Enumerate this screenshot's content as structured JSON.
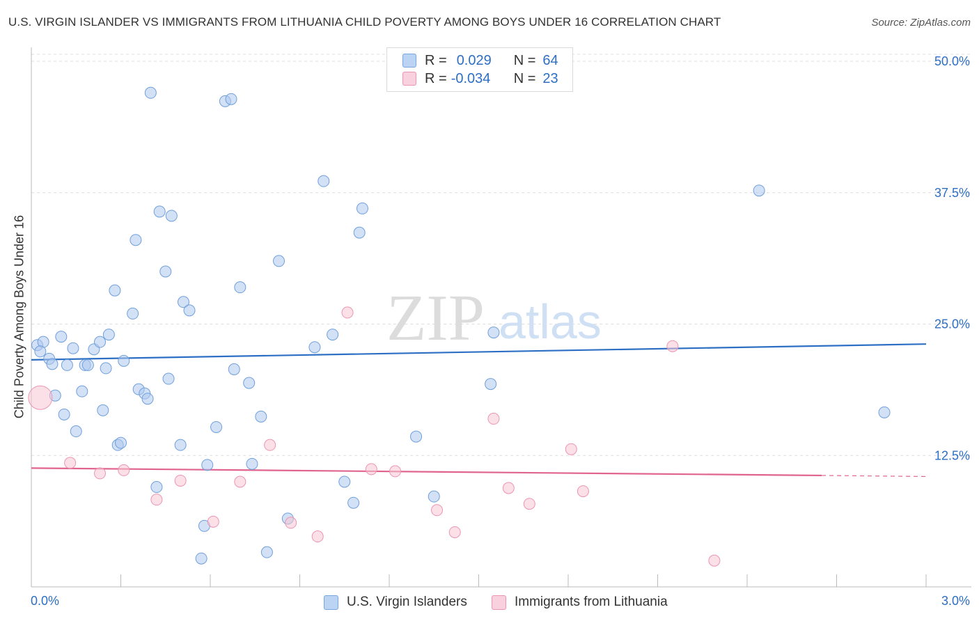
{
  "header": {
    "title": "U.S. VIRGIN ISLANDER VS IMMIGRANTS FROM LITHUANIA CHILD POVERTY AMONG BOYS UNDER 16 CORRELATION CHART",
    "source": "Source: ZipAtlas.com"
  },
  "watermark": {
    "zip": "ZIP",
    "atlas": "atlas"
  },
  "legend": {
    "series": [
      {
        "r_label": "R =",
        "r_value": "0.029",
        "n_label": "N =",
        "n_value": "64",
        "color": "#aec9ef",
        "border": "#7aa6e0"
      },
      {
        "r_label": "R =",
        "r_value": "-0.034",
        "n_label": "N =",
        "n_value": "23",
        "color": "#f7c6d6",
        "border": "#ec94b2"
      }
    ]
  },
  "bottom_legend": {
    "items": [
      {
        "label": "U.S. Virgin Islanders",
        "color": "#bcd4f3",
        "border": "#7aa6e0"
      },
      {
        "label": "Immigrants from Lithuania",
        "color": "#f9d1de",
        "border": "#ec94b2"
      }
    ]
  },
  "chart_data": {
    "type": "scatter",
    "title": "U.S. VIRGIN ISLANDER VS IMMIGRANTS FROM LITHUANIA CHILD POVERTY AMONG BOYS UNDER 16 CORRELATION CHART",
    "xlabel": "",
    "ylabel": "Child Poverty Among Boys Under 16",
    "xlim": [
      0,
      3.0
    ],
    "ylim": [
      0,
      50
    ],
    "x_tick_labels": [
      "0.0%",
      "3.0%"
    ],
    "y_ticks": [
      {
        "value": 12.5,
        "label": "12.5%"
      },
      {
        "value": 25.0,
        "label": "25.0%"
      },
      {
        "value": 37.5,
        "label": "37.5%"
      },
      {
        "value": 50.0,
        "label": "50.0%"
      }
    ],
    "grid": "horizontal-dashed",
    "series": [
      {
        "name": "U.S. Virgin Islanders",
        "color": "#aec9ef",
        "stroke": "#6f9fdc",
        "trend": {
          "x1": 0.0,
          "y1": 21.6,
          "x2": 3.0,
          "y2": 23.1,
          "color": "#2d6fc4"
        },
        "points": [
          [
            0.02,
            23.0
          ],
          [
            0.04,
            23.3
          ],
          [
            0.06,
            21.7
          ],
          [
            0.07,
            21.2
          ],
          [
            0.08,
            18.2
          ],
          [
            0.1,
            23.8
          ],
          [
            0.11,
            16.4
          ],
          [
            0.12,
            21.1
          ],
          [
            0.14,
            22.7
          ],
          [
            0.15,
            14.8
          ],
          [
            0.17,
            18.6
          ],
          [
            0.18,
            21.1
          ],
          [
            0.19,
            21.1
          ],
          [
            0.21,
            22.6
          ],
          [
            0.23,
            23.3
          ],
          [
            0.24,
            16.8
          ],
          [
            0.25,
            20.8
          ],
          [
            0.26,
            24.0
          ],
          [
            0.28,
            28.2
          ],
          [
            0.29,
            13.5
          ],
          [
            0.3,
            13.7
          ],
          [
            0.31,
            21.5
          ],
          [
            0.34,
            26.0
          ],
          [
            0.35,
            33.0
          ],
          [
            0.36,
            18.8
          ],
          [
            0.38,
            18.4
          ],
          [
            0.39,
            17.9
          ],
          [
            0.4,
            47.0
          ],
          [
            0.42,
            9.5
          ],
          [
            0.43,
            35.7
          ],
          [
            0.45,
            30.0
          ],
          [
            0.46,
            19.8
          ],
          [
            0.47,
            35.3
          ],
          [
            0.5,
            13.5
          ],
          [
            0.51,
            27.1
          ],
          [
            0.53,
            26.3
          ],
          [
            0.57,
            2.7
          ],
          [
            0.58,
            5.8
          ],
          [
            0.59,
            11.6
          ],
          [
            0.62,
            15.2
          ],
          [
            0.65,
            46.2
          ],
          [
            0.67,
            46.4
          ],
          [
            0.68,
            20.7
          ],
          [
            0.7,
            28.5
          ],
          [
            0.73,
            19.4
          ],
          [
            0.74,
            11.7
          ],
          [
            0.77,
            16.2
          ],
          [
            0.79,
            3.3
          ],
          [
            0.83,
            31.0
          ],
          [
            0.86,
            6.5
          ],
          [
            0.95,
            22.8
          ],
          [
            0.98,
            38.6
          ],
          [
            1.01,
            24.0
          ],
          [
            1.05,
            10.0
          ],
          [
            1.08,
            8.0
          ],
          [
            1.1,
            33.7
          ],
          [
            1.11,
            36.0
          ],
          [
            1.29,
            14.3
          ],
          [
            1.35,
            8.6
          ],
          [
            1.54,
            19.3
          ],
          [
            1.55,
            24.2
          ],
          [
            2.44,
            37.7
          ],
          [
            2.86,
            16.6
          ],
          [
            0.03,
            22.4
          ]
        ]
      },
      {
        "name": "Immigrants from Lithuania",
        "color": "#f7c6d6",
        "stroke": "#ec94b2",
        "trend": {
          "x1": 0.0,
          "y1": 11.3,
          "x2": 2.65,
          "y2": 10.6,
          "x3": 3.0,
          "y3": 10.5,
          "color": "#e0648f"
        },
        "points": [
          [
            0.03,
            18.0
          ],
          [
            0.13,
            11.8
          ],
          [
            0.23,
            10.8
          ],
          [
            0.31,
            11.1
          ],
          [
            0.42,
            8.3
          ],
          [
            0.5,
            10.1
          ],
          [
            0.61,
            6.2
          ],
          [
            0.7,
            10.0
          ],
          [
            0.8,
            13.5
          ],
          [
            0.87,
            6.1
          ],
          [
            0.96,
            4.8
          ],
          [
            1.06,
            26.1
          ],
          [
            1.14,
            11.2
          ],
          [
            1.22,
            11.0
          ],
          [
            1.36,
            7.3
          ],
          [
            1.42,
            5.2
          ],
          [
            1.55,
            16.0
          ],
          [
            1.6,
            9.4
          ],
          [
            1.67,
            7.9
          ],
          [
            1.81,
            13.1
          ],
          [
            1.85,
            9.1
          ],
          [
            2.15,
            22.9
          ],
          [
            2.29,
            2.5
          ]
        ]
      }
    ]
  }
}
